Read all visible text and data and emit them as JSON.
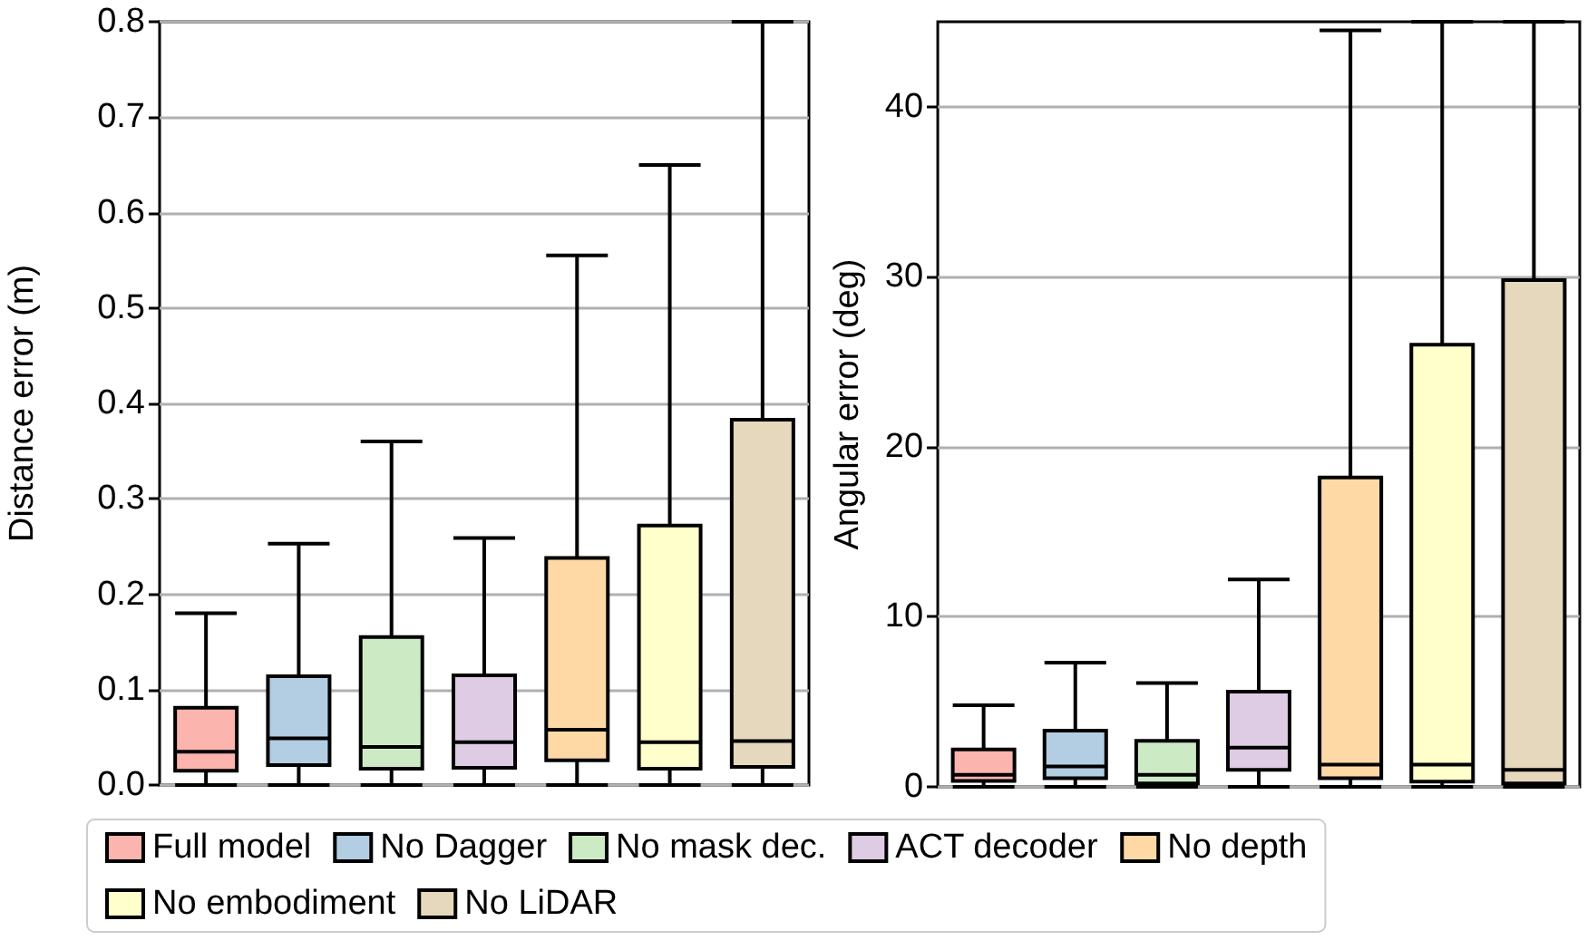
{
  "chart_data": [
    {
      "type": "box",
      "ylabel": "Distance error (m)",
      "categories": [
        null,
        null,
        null,
        null,
        null,
        null,
        null
      ],
      "ylim": [
        0,
        0.8
      ],
      "yticks": [
        {
          "value": 0,
          "label": "0.0"
        },
        {
          "value": 0.1,
          "label": "0.1"
        },
        {
          "value": 0.2,
          "label": "0.2"
        },
        {
          "value": 0.3,
          "label": "0.3"
        },
        {
          "value": 0.4,
          "label": "0.4"
        },
        {
          "value": 0.5,
          "label": "0.5"
        },
        {
          "value": 0.6,
          "label": "0.6"
        },
        {
          "value": 0.7,
          "label": "0.7"
        },
        {
          "value": 0.8,
          "label": "0.8"
        }
      ],
      "grid": "y",
      "legend": "bottom",
      "tick_labels": "y",
      "series": [
        {
          "name": "Full model",
          "color": "#fbb4ae",
          "boxes": [
            {
              "low": 0,
              "q1": 0.015,
              "median": 0.035,
              "q3": 0.081,
              "high": 0.18
            },
            null,
            null,
            null,
            null,
            null,
            null
          ]
        },
        {
          "name": "No Dagger",
          "color": "#b3cde3",
          "boxes": [
            null,
            {
              "low": 0,
              "q1": 0.021,
              "median": 0.049,
              "q3": 0.114,
              "high": 0.253
            },
            null,
            null,
            null,
            null,
            null
          ]
        },
        {
          "name": "No mask dec.",
          "color": "#ccebc5",
          "boxes": [
            null,
            null,
            {
              "low": 0,
              "q1": 0.017,
              "median": 0.04,
              "q3": 0.155,
              "high": 0.36
            },
            null,
            null,
            null,
            null
          ]
        },
        {
          "name": "ACT decoder",
          "color": "#decbe4",
          "boxes": [
            null,
            null,
            null,
            {
              "low": 0,
              "q1": 0.018,
              "median": 0.045,
              "q3": 0.115,
              "high": 0.259
            },
            null,
            null,
            null
          ]
        },
        {
          "name": "No depth",
          "color": "#fed9a6",
          "boxes": [
            null,
            null,
            null,
            null,
            {
              "low": 0,
              "q1": 0.026,
              "median": 0.058,
              "q3": 0.238,
              "high": 0.555
            },
            null,
            null
          ]
        },
        {
          "name": "No embodiment",
          "color": "#ffffcc",
          "boxes": [
            null,
            null,
            null,
            null,
            null,
            {
              "low": 0,
              "q1": 0.017,
              "median": 0.045,
              "q3": 0.272,
              "high": 0.65
            },
            null
          ]
        },
        {
          "name": "No LiDAR",
          "color": "#e5d8bd",
          "boxes": [
            null,
            null,
            null,
            null,
            null,
            null,
            {
              "low": 0,
              "q1": 0.019,
              "median": 0.046,
              "q3": 0.383,
              "high": 0.8
            }
          ]
        }
      ]
    },
    {
      "type": "box",
      "ylabel": "Angular error (deg)",
      "categories": [
        null,
        null,
        null,
        null,
        null,
        null,
        null
      ],
      "ylim": [
        0,
        45
      ],
      "yticks": [
        0,
        10,
        20,
        30,
        40
      ],
      "grid": "y",
      "tick_labels": "y",
      "series": [
        {
          "color": "#fbb4ae",
          "boxes": [
            {
              "low": 0,
              "q1": 0.35,
              "median": 0.7,
              "q3": 2.2,
              "high": 4.8
            },
            null,
            null,
            null,
            null,
            null,
            null
          ]
        },
        {
          "color": "#b3cde3",
          "boxes": [
            null,
            {
              "low": 0,
              "q1": 0.5,
              "median": 1.2,
              "q3": 3.3,
              "high": 7.3
            },
            null,
            null,
            null,
            null,
            null
          ]
        },
        {
          "color": "#ccebc5",
          "boxes": [
            null,
            null,
            {
              "low": 0,
              "q1": 0.2,
              "median": 0.7,
              "q3": 2.7,
              "high": 6.1
            },
            null,
            null,
            null,
            null
          ]
        },
        {
          "color": "#decbe4",
          "boxes": [
            null,
            null,
            null,
            {
              "low": 0,
              "q1": 1.0,
              "median": 2.3,
              "q3": 5.6,
              "high": 12.2
            },
            null,
            null,
            null
          ]
        },
        {
          "color": "#fed9a6",
          "boxes": [
            null,
            null,
            null,
            null,
            {
              "low": 0,
              "q1": 0.5,
              "median": 1.3,
              "q3": 18.2,
              "high": 44.5
            },
            null,
            null
          ]
        },
        {
          "color": "#ffffcc",
          "boxes": [
            null,
            null,
            null,
            null,
            null,
            {
              "low": 0,
              "q1": 0.3,
              "median": 1.3,
              "q3": 26,
              "high": 45
            },
            null
          ]
        },
        {
          "color": "#e5d8bd",
          "boxes": [
            null,
            null,
            null,
            null,
            null,
            null,
            {
              "low": 0,
              "q1": 0.2,
              "median": 1.0,
              "q3": 29.8,
              "high": 45
            }
          ]
        }
      ]
    }
  ]
}
